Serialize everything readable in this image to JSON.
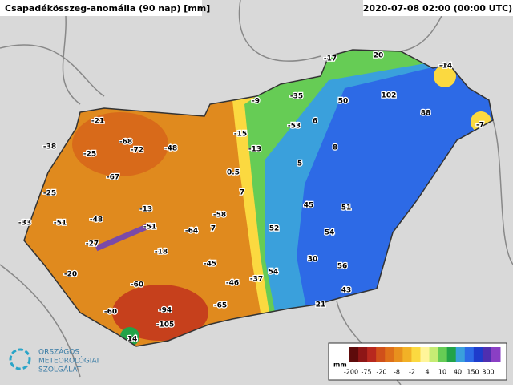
{
  "header": {
    "title": "Csapadékösszeg-anomália (90 nap) [mm]",
    "timestamp": "2020-07-08 02:00 (00:00 UTC)"
  },
  "stations": [
    -17,
    20,
    -14,
    -35,
    50,
    102,
    88,
    -7,
    -9,
    -21,
    -53,
    6,
    -15,
    -38,
    -68,
    -72,
    -48,
    -25,
    -13,
    8,
    5,
    0.5,
    -67,
    -25,
    7,
    45,
    51,
    -13,
    -58,
    -33,
    -51,
    -48,
    -51,
    -64,
    7,
    52,
    54,
    -27,
    -18,
    -45,
    30,
    56,
    -20,
    54,
    -37,
    -46,
    -60,
    43,
    -94,
    -65,
    21,
    -60,
    -105,
    14
  ],
  "legend": {
    "unit": "mm",
    "labels": [
      "-200",
      "-75",
      "-20",
      "-8",
      "-2",
      "4",
      "10",
      "40",
      "150",
      "300"
    ],
    "colors": [
      "#5e0b0b",
      "#8e1616",
      "#b8281e",
      "#d0501a",
      "#de7019",
      "#e8901d",
      "#f2b126",
      "#fbd940",
      "#fff59a",
      "#c6ec74",
      "#66cc55",
      "#22a348",
      "#3aa0dc",
      "#2d6ae6",
      "#1e3ccc",
      "#4f2fb0",
      "#8a3fc4"
    ]
  },
  "logo": {
    "line1": "ORSZÁGOS",
    "line2": "METEOROLÓGIAI",
    "line3": "SZOLGÁLAT"
  }
}
